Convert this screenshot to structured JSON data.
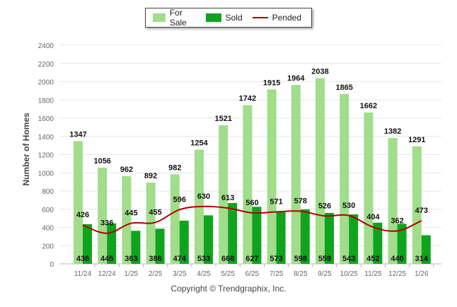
{
  "legend": {
    "for_sale": "For Sale",
    "sold": "Sold",
    "pended": "Pended"
  },
  "copyright": "Copyright © Trendgraphix, Inc.",
  "colors": {
    "for_sale": "#a1dd8a",
    "sold": "#10a31e",
    "pended": "#b30000",
    "grid": "#e6e6e6"
  },
  "chart_data": {
    "type": "bar",
    "ylabel": "Number of Homes",
    "ylim": [
      0,
      2400
    ],
    "yticks": [
      0,
      200,
      400,
      600,
      800,
      1000,
      1200,
      1400,
      1600,
      1800,
      2000,
      2200,
      2400
    ],
    "categories": [
      "11/24",
      "12/24",
      "1/25",
      "2/25",
      "3/25",
      "4/25",
      "5/25",
      "6/25",
      "7/25",
      "8/25",
      "9/25",
      "10/25",
      "11/25",
      "12/25",
      "1/26"
    ],
    "grid": true,
    "legend_position": "top-center",
    "series": [
      {
        "name": "For Sale",
        "type": "bar",
        "values": [
          1347,
          1056,
          962,
          892,
          982,
          1254,
          1521,
          1742,
          1915,
          1964,
          2038,
          1865,
          1662,
          1382,
          1291
        ]
      },
      {
        "name": "Sold",
        "type": "bar",
        "values": [
          436,
          445,
          363,
          386,
          474,
          533,
          668,
          627,
          573,
          598,
          559,
          543,
          452,
          440,
          314
        ]
      },
      {
        "name": "Pended",
        "type": "line",
        "values": [
          426,
          336,
          445,
          455,
          596,
          630,
          613,
          560,
          571,
          578,
          526,
          530,
          404,
          362,
          473
        ]
      }
    ]
  }
}
